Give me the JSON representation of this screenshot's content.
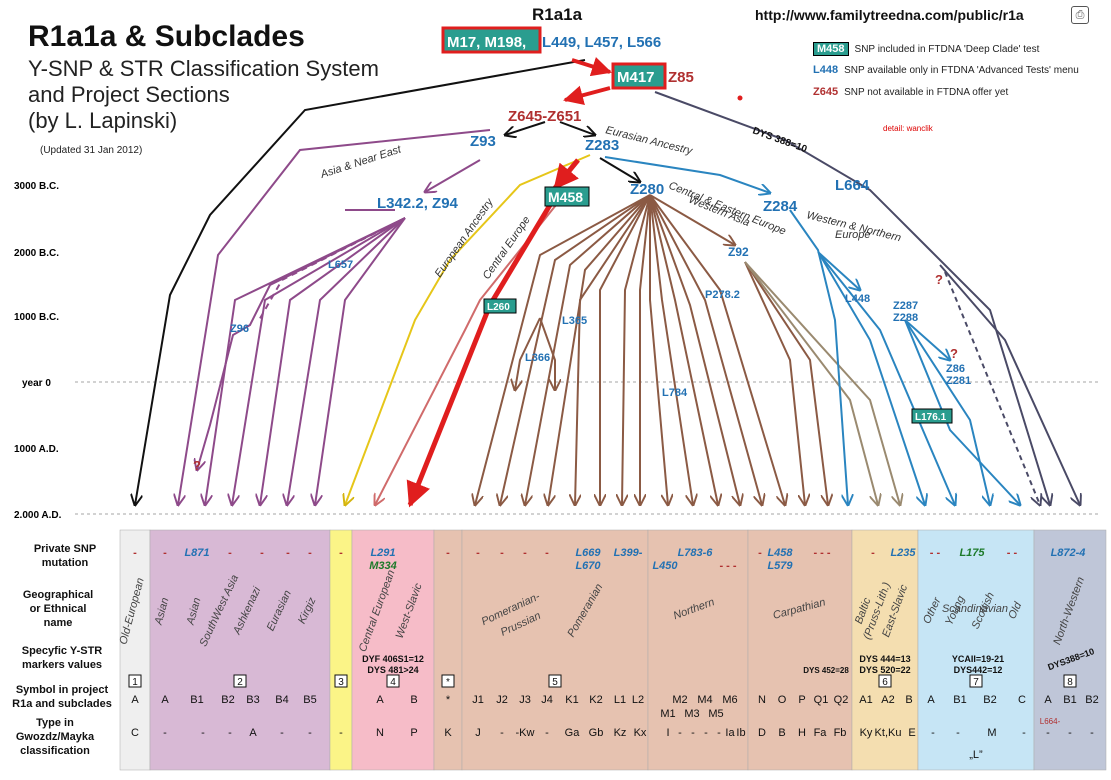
{
  "header": {
    "title": "R1a1a & Subclades",
    "subtitle_lines": [
      "Y-SNP & STR Classification System",
      "and Project Sections",
      "(by L. Lapinski)"
    ],
    "updated": "(Updated 31 Jan 2012)",
    "top_title": "R1a1a",
    "url": "http://www.familytreedna.com/public/r1a",
    "detail": "detail: wanclik"
  },
  "legend": [
    {
      "code": "M458",
      "text": "SNP included in FTDNA 'Deep Clade' test",
      "style": "box"
    },
    {
      "code": "L448",
      "text": "SNP available only in FTDNA 'Advanced Tests' menu",
      "style": "blue"
    },
    {
      "code": "Z645",
      "text": "SNP not available in FTDNA offer yet",
      "style": "red"
    }
  ],
  "colors": {
    "box_fill": "#2a9d8f",
    "blue": "#2271b3",
    "red": "#b03030",
    "asia": "#8e4a8a",
    "european": "#e6c619",
    "central_europe": "#d06b6b",
    "brown": "#8b5a44",
    "west": "#2a85c0",
    "dark": "#4a4a66",
    "highlight": "#e01e1e"
  },
  "timeline": [
    "3000 B.C.",
    "2000 B.C.",
    "1000 B.C.",
    "year 0",
    "1000 A.D.",
    "2.000 A.D."
  ],
  "snps": {
    "root_boxed": "M17, M198,",
    "root_rest": "L449, L457, L566",
    "m417": "M417",
    "z85": "Z85",
    "z645": "Z645-Z651",
    "dys388": "DYS 388=10",
    "z93": "Z93",
    "z283": "Z283",
    "l664": "L664",
    "l342": "L342.2, Z94",
    "m458": "M458",
    "z280": "Z280",
    "z284": "Z284",
    "l657": "L657",
    "z92": "Z92",
    "l260": "L260",
    "l365": "L365",
    "p278": "P278.2",
    "l448": "L448",
    "z287": "Z287",
    "z288": "Z288",
    "z96": "Z96",
    "l366": "L366",
    "z86": "Z86",
    "z281": "Z281",
    "l784": "L784",
    "l176": "L176.1",
    "q1": "?",
    "q2": "?",
    "q3": "?"
  },
  "branch_labels": {
    "eurasian": "Eurasian Ancestry",
    "asia_ne": "Asia & Near East",
    "european": "European Ancestry",
    "central_europe": "Central Europe",
    "cee1": "Central & Eastern Europe",
    "cee2": "Western Asia",
    "wne1": "Western & Northern",
    "wne2": "Europe"
  },
  "table": {
    "row_labels": {
      "snp": [
        "Private SNP",
        "mutation"
      ],
      "geo": [
        "Geographical",
        "or Ethnical",
        "name"
      ],
      "str": [
        "Specyfic Y-STR",
        "markers values"
      ],
      "symbol": [
        "Symbol in project",
        "R1a and subclades"
      ],
      "type": [
        "Type in",
        "Gwozdz/Mayka",
        "classification"
      ]
    },
    "sections": [
      {
        "num": "1",
        "x": 120,
        "w": 30,
        "fill": "#efefef",
        "snp": [
          {
            "t": "-",
            "c": "red",
            "x": 135
          }
        ],
        "geo": [
          {
            "t": "Old-European",
            "x": 135,
            "r": -75
          }
        ],
        "str": [],
        "symbol": [
          {
            "t": "A",
            "x": 135
          }
        ],
        "type": [
          {
            "t": "C",
            "x": 135
          }
        ]
      },
      {
        "num": "2",
        "x": 150,
        "w": 180,
        "fill": "#d8b9d5",
        "snp": [
          {
            "t": "-",
            "c": "red",
            "x": 165
          },
          {
            "t": "L871",
            "c": "blue",
            "x": 197
          },
          {
            "t": "-",
            "c": "red",
            "x": 230
          },
          {
            "t": "-",
            "c": "red",
            "x": 262
          },
          {
            "t": "-",
            "c": "red",
            "x": 288
          },
          {
            "t": "-",
            "c": "red",
            "x": 310
          }
        ],
        "geo": [
          {
            "t": "Asian",
            "x": 165,
            "r": -75
          },
          {
            "t": "Asian",
            "x": 197,
            "r": -75
          },
          {
            "t": "SouthWest Asia",
            "x": 222,
            "r": -65
          },
          {
            "t": "Ashkenazi",
            "x": 250,
            "r": -65
          },
          {
            "t": "Eurasian",
            "x": 282,
            "r": -65
          },
          {
            "t": "Kirgiz",
            "x": 310,
            "r": -65
          }
        ],
        "str": [],
        "symbol": [
          {
            "t": "A",
            "x": 165
          },
          {
            "t": "B1",
            "x": 197
          },
          {
            "t": "B2",
            "x": 228
          },
          {
            "t": "B3",
            "x": 253
          },
          {
            "t": "B4",
            "x": 282
          },
          {
            "t": "B5",
            "x": 310
          }
        ],
        "type": [
          {
            "t": "-",
            "x": 165
          },
          {
            "t": "-",
            "x": 203
          },
          {
            "t": "-",
            "x": 230
          },
          {
            "t": "A",
            "x": 253
          },
          {
            "t": "-",
            "x": 282
          },
          {
            "t": "-",
            "x": 310
          }
        ]
      },
      {
        "num": "3",
        "x": 330,
        "w": 22,
        "fill": "#fbf487",
        "snp": [
          {
            "t": "-",
            "c": "red",
            "x": 341
          }
        ],
        "geo": [],
        "str": [],
        "symbol": [],
        "type": [
          {
            "t": "-",
            "x": 341
          }
        ]
      },
      {
        "num": "4",
        "x": 352,
        "w": 82,
        "fill": "#f6bcc8",
        "snp": [
          {
            "t": "L291",
            "c": "blue",
            "x": 383
          },
          {
            "t": "M334",
            "c": "green",
            "x": 383,
            "dy": 13
          }
        ],
        "geo": [
          {
            "t": "Central European",
            "x": 380,
            "r": -70
          },
          {
            "t": "West-Slavic",
            "x": 412,
            "r": -70
          }
        ],
        "str": [
          {
            "t": "DYF 406S1=12",
            "x": 393
          },
          {
            "t": "DYS 481>24",
            "x": 393,
            "dy": 11
          }
        ],
        "symbol": [
          {
            "t": "A",
            "x": 380
          },
          {
            "t": "B",
            "x": 414
          }
        ],
        "type": [
          {
            "t": "N",
            "x": 380
          },
          {
            "t": "P",
            "x": 414
          }
        ]
      },
      {
        "num": "*",
        "x": 434,
        "w": 28,
        "fill": "#e6c2b0",
        "snp": [
          {
            "t": "-",
            "c": "red",
            "x": 448
          }
        ],
        "geo": [],
        "str": [],
        "symbol": [
          {
            "t": "*",
            "x": 448
          }
        ],
        "type": [
          {
            "t": "K",
            "x": 448
          }
        ]
      },
      {
        "num": "5",
        "x": 462,
        "w": 186,
        "fill": "#e6c2b0",
        "snp": [
          {
            "t": "-",
            "c": "red",
            "x": 478
          },
          {
            "t": "-",
            "c": "red",
            "x": 502
          },
          {
            "t": "-",
            "c": "red",
            "x": 525
          },
          {
            "t": "-",
            "c": "red",
            "x": 547
          },
          {
            "t": "L669",
            "c": "blue",
            "x": 588
          },
          {
            "t": "L670",
            "c": "blue",
            "x": 588,
            "dy": 13
          },
          {
            "t": "L399-",
            "c": "blue",
            "x": 628
          }
        ],
        "geo": [
          {
            "t": "Pomeranian-",
            "x": 512,
            "r": -25
          },
          {
            "t": "Prussian",
            "x": 522,
            "r": -25,
            "dy": 15
          },
          {
            "t": "Pomeranian",
            "x": 588,
            "r": -60
          }
        ],
        "str": [],
        "symbol": [
          {
            "t": "J1",
            "x": 478
          },
          {
            "t": "J2",
            "x": 502
          },
          {
            "t": "J3",
            "x": 525
          },
          {
            "t": "J4",
            "x": 547
          },
          {
            "t": "K1",
            "x": 572
          },
          {
            "t": "K2",
            "x": 596
          },
          {
            "t": "L1",
            "x": 620
          },
          {
            "t": "L2",
            "x": 638
          }
        ],
        "type": [
          {
            "t": "J",
            "x": 478
          },
          {
            "t": "-",
            "x": 502
          },
          {
            "t": "-Kw",
            "x": 525
          },
          {
            "t": "-",
            "x": 547
          },
          {
            "t": "Ga",
            "x": 572
          },
          {
            "t": "Gb",
            "x": 596
          },
          {
            "t": "Kz",
            "x": 620
          },
          {
            "t": "Kx",
            "x": 640
          }
        ]
      },
      {
        "num": "",
        "x": 648,
        "w": 100,
        "fill": "#e6c2b0",
        "snp": [
          {
            "t": "L783-6",
            "c": "blue",
            "x": 695
          },
          {
            "t": "L450",
            "c": "blue",
            "x": 665,
            "dy": 13
          },
          {
            "t": "- - -",
            "c": "red",
            "x": 728,
            "dy": 13
          }
        ],
        "geo": [
          {
            "t": "Northern",
            "x": 695,
            "r": -20
          }
        ],
        "str": [],
        "symbol": [
          {
            "t": "M2",
            "x": 680
          },
          {
            "t": "M4",
            "x": 705
          },
          {
            "t": "M6",
            "x": 730
          },
          {
            "t": "M1",
            "x": 668,
            "dy": 14
          },
          {
            "t": "M3",
            "x": 692,
            "dy": 14
          },
          {
            "t": "M5",
            "x": 716,
            "dy": 14
          }
        ],
        "type": [
          {
            "t": "I",
            "x": 668
          },
          {
            "t": "-",
            "x": 680
          },
          {
            "t": "-",
            "x": 693
          },
          {
            "t": "-",
            "x": 706
          },
          {
            "t": "-",
            "x": 719
          },
          {
            "t": "Ia",
            "x": 730
          },
          {
            "t": "Ib",
            "x": 741
          }
        ]
      },
      {
        "num": "",
        "x": 748,
        "w": 104,
        "fill": "#e6c2b0",
        "snp": [
          {
            "t": "-",
            "c": "red",
            "x": 760
          },
          {
            "t": "L458",
            "c": "blue",
            "x": 780
          },
          {
            "t": "L579",
            "c": "blue",
            "x": 780,
            "dy": 13
          },
          {
            "t": "- - -",
            "c": "red",
            "x": 822
          }
        ],
        "geo": [
          {
            "t": "Carpathian",
            "x": 800,
            "r": -15
          }
        ],
        "str": [
          {
            "t": "DYS 452=28",
            "x": 826,
            "dy": 11,
            "small": true
          }
        ],
        "symbol": [
          {
            "t": "N",
            "x": 762
          },
          {
            "t": "O",
            "x": 782
          },
          {
            "t": "P",
            "x": 802
          },
          {
            "t": "Q1",
            "x": 821
          },
          {
            "t": "Q2",
            "x": 841
          }
        ],
        "type": [
          {
            "t": "D",
            "x": 762
          },
          {
            "t": "B",
            "x": 782
          },
          {
            "t": "H",
            "x": 802
          },
          {
            "t": "Fa",
            "x": 820
          },
          {
            "t": "Fb",
            "x": 840
          }
        ]
      },
      {
        "num": "6",
        "x": 852,
        "w": 66,
        "fill": "#f4deb0",
        "snp": [
          {
            "t": "-",
            "c": "red",
            "x": 873
          },
          {
            "t": "L235",
            "c": "blue",
            "x": 903
          }
        ],
        "geo": [
          {
            "t": "Baltic",
            "x": 866,
            "r": -70
          },
          {
            "t": "(Pruss-Lith.)",
            "x": 880,
            "r": -70
          },
          {
            "t": "East-Slavic",
            "x": 898,
            "r": -70
          }
        ],
        "str": [
          {
            "t": "DYS 444=13",
            "x": 885
          },
          {
            "t": "DYS 520=22",
            "x": 885,
            "dy": 11
          }
        ],
        "symbol": [
          {
            "t": "A1",
            "x": 866
          },
          {
            "t": "A2",
            "x": 888
          },
          {
            "t": "B",
            "x": 909
          }
        ],
        "type": [
          {
            "t": "Ky",
            "x": 866
          },
          {
            "t": "Kt,Ku",
            "x": 888
          },
          {
            "t": "E",
            "x": 912
          }
        ]
      },
      {
        "num": "7",
        "x": 918,
        "w": 116,
        "fill": "#c6e5f5",
        "snp": [
          {
            "t": "- -",
            "c": "red",
            "x": 935
          },
          {
            "t": "L175",
            "c": "green",
            "x": 972
          },
          {
            "t": "- -",
            "c": "red",
            "x": 1012
          }
        ],
        "geo": [
          {
            "t": "Scandinavian",
            "x": 975,
            "r": 0
          },
          {
            "t": "Other",
            "x": 935,
            "r": -65
          },
          {
            "t": "Young",
            "x": 958,
            "r": -65
          },
          {
            "t": "Scottish",
            "x": 986,
            "r": -65
          },
          {
            "t": "Old",
            "x": 1018,
            "r": -65
          }
        ],
        "str": [
          {
            "t": "YCAII=19-21",
            "x": 978
          },
          {
            "t": "DYS442=12",
            "x": 978,
            "dy": 11
          }
        ],
        "symbol": [
          {
            "t": "A",
            "x": 931
          },
          {
            "t": "B1",
            "x": 960
          },
          {
            "t": "B2",
            "x": 990
          },
          {
            "t": "C",
            "x": 1022
          }
        ],
        "type": [
          {
            "t": "-",
            "x": 933
          },
          {
            "t": "-",
            "x": 958
          },
          {
            "t": "M",
            "x": 992
          },
          {
            "t": "-",
            "x": 1024
          },
          {
            "t": "„L”",
            "x": 976,
            "dy": 22
          }
        ]
      },
      {
        "num": "8",
        "x": 1034,
        "w": 72,
        "fill": "#bfc6d8",
        "snp": [
          {
            "t": "L872-4",
            "c": "blue",
            "x": 1068
          }
        ],
        "geo": [
          {
            "t": "North-Western",
            "x": 1072,
            "r": -70
          }
        ],
        "str": [
          {
            "t": "DYS388=10",
            "x": 1072,
            "r": -20
          }
        ],
        "symbol": [
          {
            "t": "A",
            "x": 1048
          },
          {
            "t": "B1",
            "x": 1070
          },
          {
            "t": "B2",
            "x": 1092
          }
        ],
        "type": [
          {
            "t": "L664-",
            "x": 1050,
            "c": "red",
            "dy": -12,
            "small": true
          },
          {
            "t": "-",
            "x": 1048
          },
          {
            "t": "-",
            "x": 1070
          },
          {
            "t": "-",
            "x": 1092
          }
        ]
      }
    ]
  }
}
